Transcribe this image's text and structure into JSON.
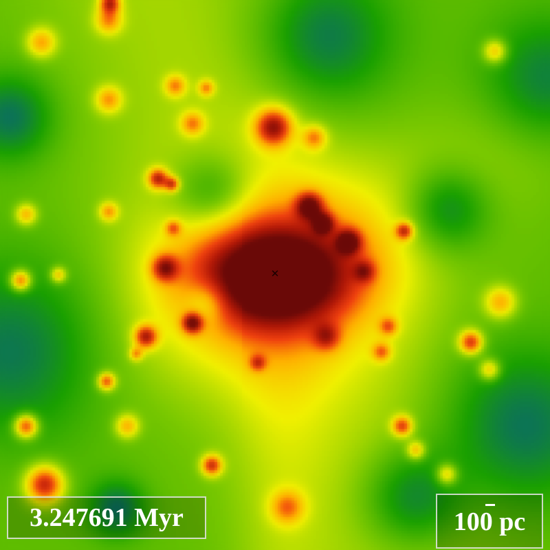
{
  "simulation_view": {
    "time_label": "3.247691 Myr",
    "scale_label": "100 pc",
    "colormap": [
      "#08308f",
      "#0a6a6a",
      "#1aa000",
      "#7ac800",
      "#f0f000",
      "#ffb000",
      "#f04010",
      "#b01808",
      "#6a0a08"
    ],
    "marker_icon": "cross-marker-icon"
  }
}
